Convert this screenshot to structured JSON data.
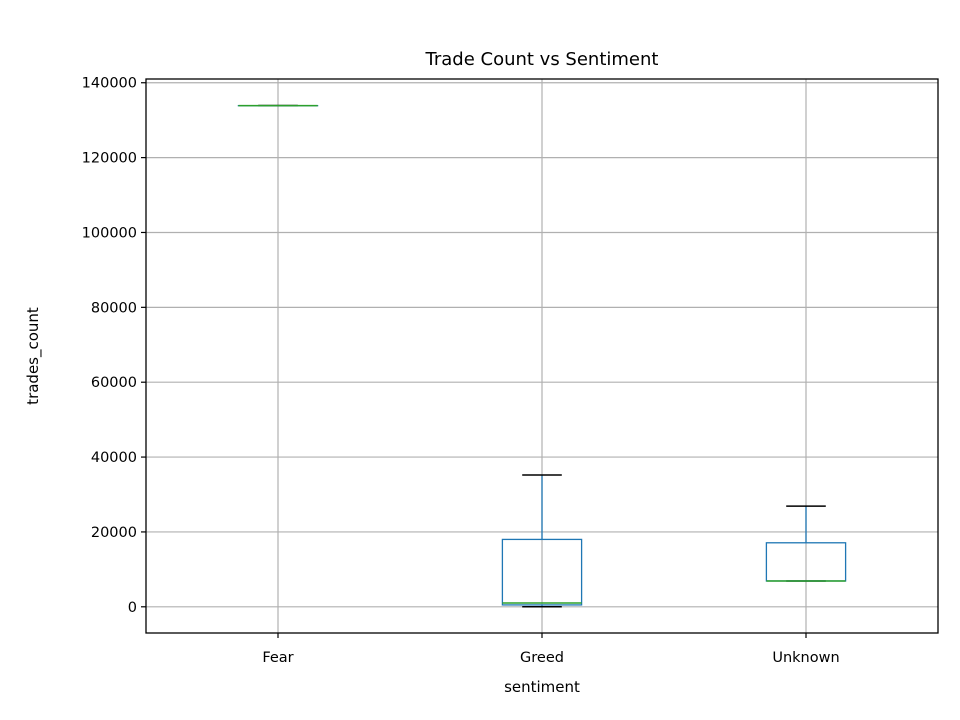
{
  "chart_data": {
    "type": "box",
    "title": "Trade Count vs Sentiment",
    "xlabel": "sentiment",
    "ylabel": "trades_count",
    "categories": [
      "Fear",
      "Greed",
      "Unknown"
    ],
    "ylim": [
      -7000,
      141000
    ],
    "yticks": [
      0,
      20000,
      40000,
      60000,
      80000,
      100000,
      120000,
      140000
    ],
    "ytick_labels": [
      "0",
      "20000",
      "40000",
      "60000",
      "80000",
      "100000",
      "120000",
      "140000"
    ],
    "grid": true,
    "boxes": [
      {
        "category": "Fear",
        "whislo": 133871,
        "q1": 133871,
        "median": 133871,
        "q3": 133871,
        "whishi": 133871
      },
      {
        "category": "Greed",
        "whislo": 0,
        "q1": 500,
        "median": 1000,
        "q3": 18000,
        "whishi": 35200
      },
      {
        "category": "Unknown",
        "whislo": 6900,
        "q1": 6900,
        "median": 6900,
        "q3": 17100,
        "whishi": 26900
      }
    ],
    "colors": {
      "box": "#1f77b4",
      "median": "#2ca02c",
      "whisker_cap": "#000000",
      "grid": "#b0b0b0"
    }
  }
}
